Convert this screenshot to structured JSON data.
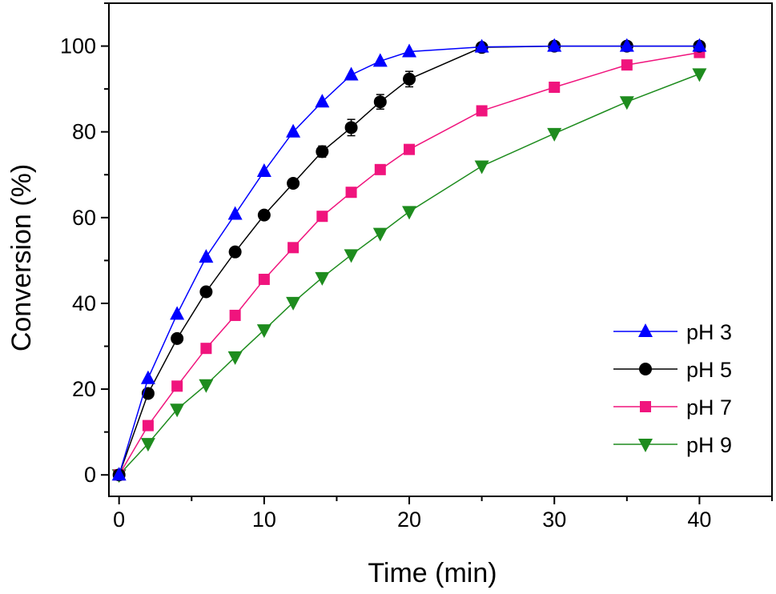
{
  "chart_data": {
    "type": "line",
    "title": "",
    "xlabel": "Time (min)",
    "ylabel": "Conversion (%)",
    "xlim": [
      -0.7,
      45
    ],
    "ylim": [
      -5,
      110
    ],
    "x_ticks": [
      0,
      10,
      20,
      30,
      40
    ],
    "y_ticks": [
      0,
      20,
      40,
      60,
      80,
      100
    ],
    "x_tick_labels": [
      "0",
      "10",
      "20",
      "30",
      "40"
    ],
    "y_tick_labels": [
      "0",
      "20",
      "40",
      "60",
      "80",
      "100"
    ],
    "grid": false,
    "legend_position": "bottom-right",
    "series": [
      {
        "name": "pH 3",
        "color": "#0000ff",
        "marker": "triangle-up",
        "x": [
          0,
          2,
          4,
          6,
          8,
          10,
          12,
          14,
          16,
          18,
          20,
          25,
          30,
          35,
          40
        ],
        "y": [
          0,
          22.5,
          37.5,
          50.8,
          60.8,
          70.8,
          80,
          87,
          93.3,
          96.5,
          98.7,
          99.8,
          100,
          100,
          100
        ]
      },
      {
        "name": "pH 5",
        "color": "#000000",
        "marker": "circle",
        "x": [
          0,
          2,
          4,
          6,
          8,
          10,
          12,
          14,
          16,
          18,
          20,
          25,
          30,
          35,
          40
        ],
        "y": [
          0,
          19,
          31.8,
          42.7,
          52,
          60.6,
          68,
          75.4,
          81,
          87,
          92.3,
          99.7,
          100,
          100,
          100
        ],
        "error": [
          0,
          0,
          0,
          0,
          0,
          0,
          0.9,
          1.3,
          1.9,
          1.7,
          1.8,
          0,
          0,
          0,
          0
        ]
      },
      {
        "name": "pH 7",
        "color": "#f0147d",
        "marker": "square",
        "x": [
          0,
          2,
          4,
          6,
          8,
          10,
          12,
          14,
          16,
          18,
          20,
          25,
          30,
          35,
          40
        ],
        "y": [
          0,
          11.5,
          20.7,
          29.5,
          37.2,
          45.6,
          53,
          60.3,
          65.9,
          71.2,
          75.9,
          84.9,
          90.4,
          95.6,
          98.5
        ]
      },
      {
        "name": "pH 9",
        "color": "#1e8c1e",
        "marker": "triangle-down",
        "x": [
          0,
          2,
          4,
          6,
          8,
          10,
          12,
          14,
          16,
          18,
          20,
          25,
          30,
          35,
          40
        ],
        "y": [
          0,
          7.3,
          15.3,
          21,
          27.5,
          33.8,
          40.2,
          46,
          51.3,
          56.3,
          61.4,
          72,
          79.6,
          87,
          93.5
        ]
      }
    ]
  }
}
